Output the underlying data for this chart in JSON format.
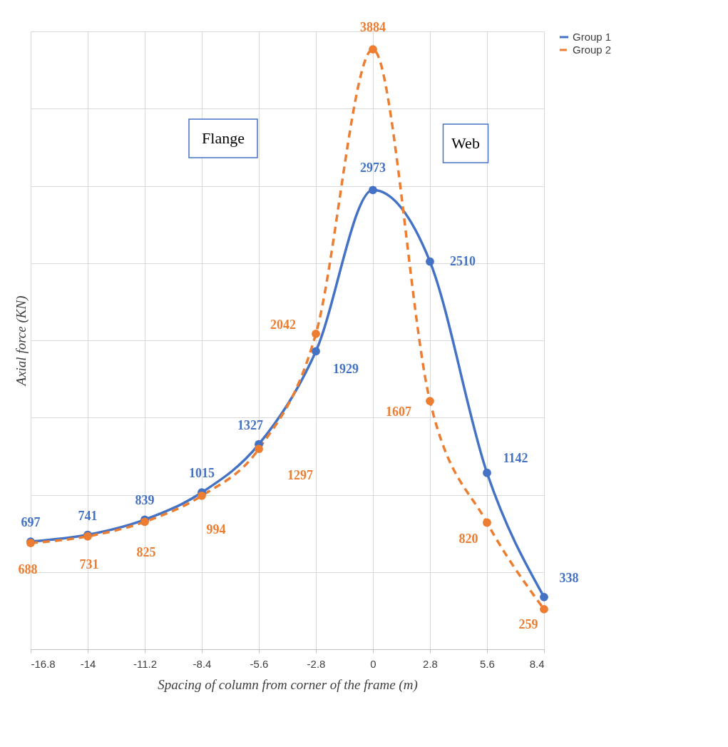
{
  "chart_data": {
    "type": "line",
    "xlabel": "Spacing of column from corner of the frame (m)",
    "ylabel": "Axial force (KN)",
    "x": [
      -16.8,
      -14,
      -11.2,
      -8.4,
      -5.6,
      -2.8,
      0,
      2.8,
      5.6,
      8.4
    ],
    "xlim": [
      -16.8,
      8.4
    ],
    "xticks": [
      -16.8,
      -14,
      -11.2,
      -8.4,
      -5.6,
      -2.8,
      0,
      2.8,
      5.6,
      8.4
    ],
    "ylim": [
      0,
      4000
    ],
    "yticks": [
      {
        "value": 0,
        "label": null
      },
      {
        "value": 500,
        "label": null
      },
      {
        "value": 1000,
        "label": null
      },
      {
        "value": 1500,
        "label": null
      },
      {
        "value": 2000,
        "label": null
      },
      {
        "value": 2500,
        "label": null
      },
      {
        "value": 3000,
        "label": null
      },
      {
        "value": 3500,
        "label": null
      },
      {
        "value": 4000,
        "label": null
      }
    ],
    "tick_labels": "x",
    "grid": true,
    "legend": "right",
    "marker": "circle",
    "data_labels": true,
    "annotations": [
      "Flange",
      "Web"
    ],
    "series": [
      {
        "name": "Group 1",
        "color": "#4472c4",
        "line_style": "solid",
        "values": [
          697,
          741,
          839,
          1015,
          1327,
          1929,
          2973,
          2510,
          1142,
          338
        ]
      },
      {
        "name": "Group 2",
        "color": "#ed7d31",
        "line_style": "dashed",
        "values": [
          688,
          731,
          825,
          994,
          1297,
          2042,
          3884,
          1607,
          820,
          259
        ]
      }
    ]
  }
}
